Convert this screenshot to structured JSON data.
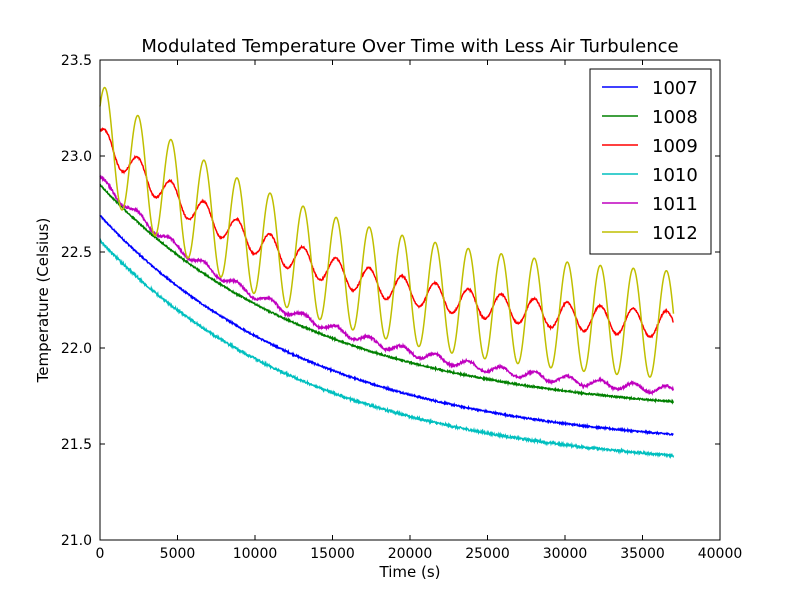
{
  "chart_data": {
    "type": "line",
    "title": "Modulated Temperature Over Time with Less Air Turbulence",
    "xlabel": "Time (s)",
    "ylabel": "Temperature (Celsius)",
    "xlim": [
      0,
      40000
    ],
    "ylim": [
      21.0,
      23.5
    ],
    "xticks": [
      0,
      5000,
      10000,
      15000,
      20000,
      25000,
      30000,
      35000,
      40000
    ],
    "yticks": [
      21.0,
      21.5,
      22.0,
      22.5,
      23.0,
      23.5
    ],
    "xtick_labels": [
      "0",
      "5000",
      "10000",
      "15000",
      "20000",
      "25000",
      "30000",
      "35000",
      "40000"
    ],
    "ytick_labels": [
      "21.0",
      "21.5",
      "22.0",
      "22.5",
      "23.0",
      "23.5"
    ],
    "grid": false,
    "legend_position": "top-right",
    "x_end": 37000,
    "oscillation_period_s": 1000,
    "series": [
      {
        "name": "1007",
        "color": "#0000ff",
        "start": 22.69,
        "end": 21.55,
        "amplitude": 0.0,
        "noise": 0.004
      },
      {
        "name": "1008",
        "color": "#008000",
        "start": 22.85,
        "end": 21.72,
        "amplitude": 0.0,
        "noise": 0.004
      },
      {
        "name": "1009",
        "color": "#ff0000",
        "start": 23.09,
        "end": 22.12,
        "amplitude": 0.07,
        "noise": 0.004
      },
      {
        "name": "1010",
        "color": "#00bfbf",
        "start": 22.56,
        "end": 21.44,
        "amplitude": 0.0,
        "noise": 0.006
      },
      {
        "name": "1011",
        "color": "#bf00bf",
        "start": 22.88,
        "end": 21.78,
        "amplitude": 0.02,
        "noise": 0.006
      },
      {
        "name": "1012",
        "color": "#bfbf00",
        "start": 23.1,
        "end": 22.12,
        "amplitude": 0.28,
        "noise": 0.0
      }
    ]
  }
}
